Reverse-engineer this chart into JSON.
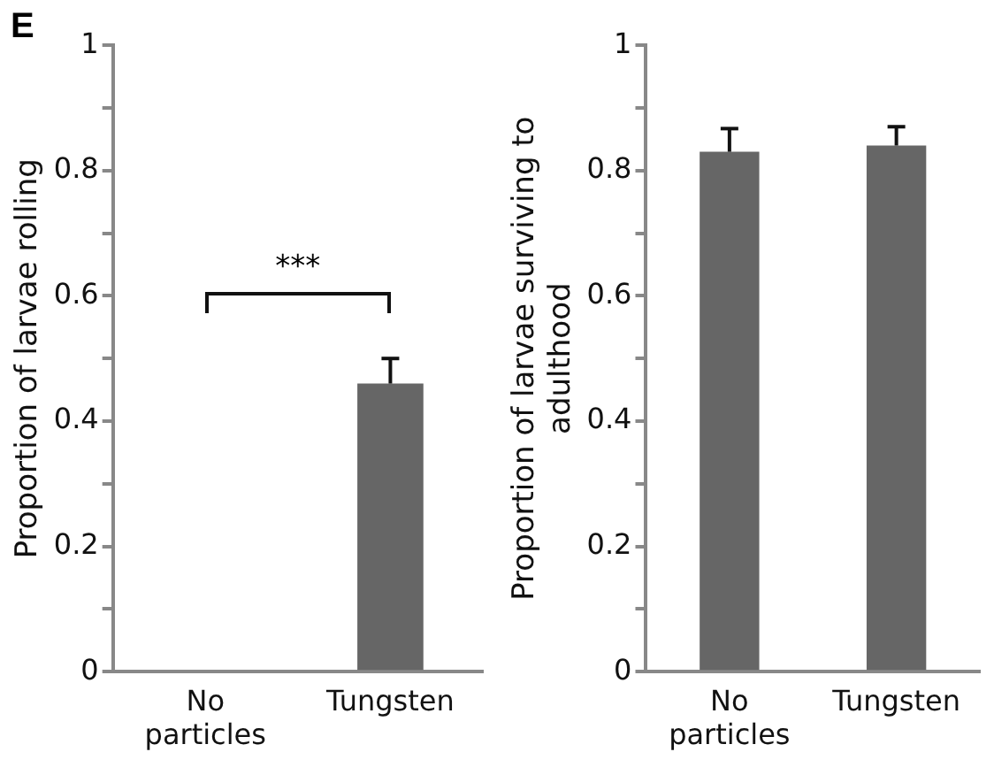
{
  "chart_data": [
    {
      "type": "bar",
      "title": "E",
      "ylabel": "Proportion of larvae rolling",
      "categories": [
        "No particles",
        "Tungsten"
      ],
      "values": [
        0,
        0.46
      ],
      "color": "#666666",
      "errors": [
        null,
        [
          0.46,
          0.5
        ]
      ],
      "ylim": [
        0,
        1
      ],
      "yticks": [
        0,
        {
          "value": 0.1,
          "label": null
        },
        0.2,
        {
          "value": 0.3,
          "label": null
        },
        0.4,
        {
          "value": 0.5,
          "label": null
        },
        0.6,
        {
          "value": 0.7,
          "label": null
        },
        0.8,
        {
          "value": 0.9,
          "label": null
        },
        1
      ],
      "annotations": [
        "***"
      ]
    },
    {
      "type": "bar",
      "ylabel": "Proportion of larvae surviving to adulthood",
      "categories": [
        "No particles",
        "Tungsten"
      ],
      "values": [
        0.83,
        0.84
      ],
      "color": "#666666",
      "errors": [
        [
          0.83,
          0.867
        ],
        [
          0.84,
          0.87
        ]
      ],
      "ylim": [
        0,
        1
      ],
      "yticks": [
        0,
        {
          "value": 0.1,
          "label": null
        },
        0.2,
        {
          "value": 0.3,
          "label": null
        },
        0.4,
        {
          "value": 0.5,
          "label": null
        },
        0.6,
        {
          "value": 0.7,
          "label": null
        },
        0.8,
        {
          "value": 0.9,
          "label": null
        },
        1
      ]
    }
  ]
}
